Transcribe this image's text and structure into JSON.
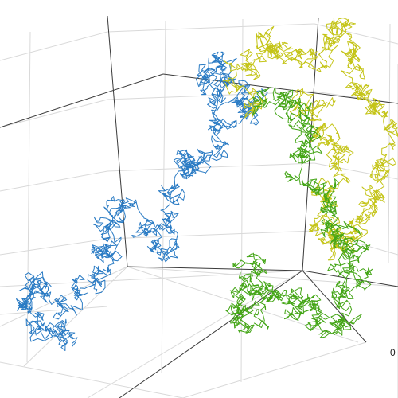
{
  "chart_data": {
    "type": "line",
    "subtype": "3d random walk",
    "title": "",
    "axes": 3,
    "grid": true,
    "tick_labels": [
      "0"
    ],
    "series": [
      {
        "color": "#2a7bc4",
        "trace": "blue"
      },
      {
        "color": "#c4c417",
        "trace": "yellow"
      },
      {
        "color": "#43a515",
        "trace": "green"
      }
    ]
  }
}
